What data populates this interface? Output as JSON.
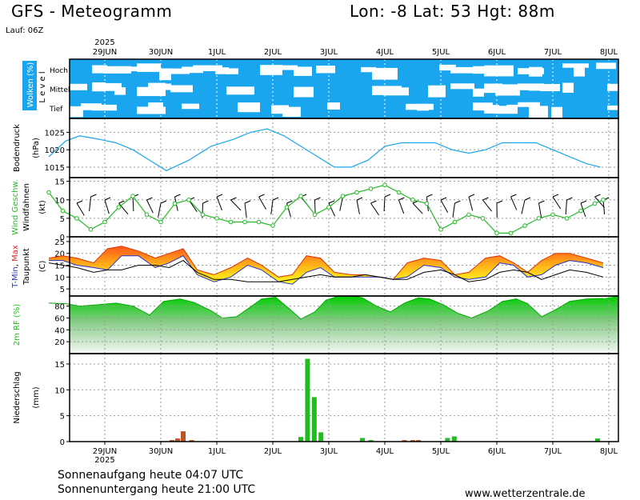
{
  "header": {
    "title": "GFS - Meteogramm",
    "location": "Lon: -8 Lat: 53 Hgt: 88m",
    "run": "Lauf: 06Z"
  },
  "footer": {
    "sunrise": "Sonnenaufgang heute 04:07 UTC",
    "sunset": "Sonnenuntergang heute 21:00 UTC",
    "site": "www.wetterzentrale.de"
  },
  "colors": {
    "cloud": "#1aa6ee",
    "pressure": "#1aa6ee",
    "wind_speed": "#22bb22",
    "t_min": "#2233cc",
    "t_max": "#ee2222",
    "dewpoint": "#000000",
    "rh": "#11cc11",
    "rain": "#22bb22",
    "snow": "#bb5522"
  },
  "chart_data": [
    {
      "type": "heatmap",
      "id": "clouds",
      "ylabel": "Wolken (%)",
      "ylabel_rows": [
        "L e v e l"
      ],
      "levels": [
        "Hoch",
        "Mittel",
        "Tief"
      ],
      "dates": [
        "29JUN",
        "30JUN",
        "1JUL",
        "2JUL",
        "3JUL",
        "4JUL",
        "5JUL",
        "6JUL",
        "7JUL",
        "8JUL"
      ],
      "year": "2025"
    },
    {
      "type": "line",
      "id": "pressure",
      "ylabel": "Bodendruck",
      "unit": "(hPa)",
      "yticks": [
        1015,
        1020,
        1025
      ],
      "ylim": [
        1012,
        1029
      ],
      "x_day": [
        0,
        0.3,
        0.55,
        0.9,
        1.2,
        1.5,
        1.8,
        2.1,
        2.5,
        2.9,
        3.3,
        3.6,
        3.9,
        4.2,
        4.5,
        4.8,
        5.1,
        5.4,
        5.7,
        6.0,
        6.3,
        6.6,
        6.9,
        7.2,
        7.5,
        7.8,
        8.1,
        8.4,
        8.7,
        9.0,
        9.3,
        9.6,
        9.85
      ],
      "values": [
        1018,
        1022.5,
        1024,
        1023,
        1022,
        1020,
        1017,
        1014,
        1017,
        1021,
        1023,
        1025,
        1026,
        1024,
        1021,
        1018,
        1015,
        1015,
        1017,
        1021,
        1022,
        1022,
        1022,
        1020,
        1019,
        1020,
        1022,
        1022,
        1022,
        1020,
        1018,
        1016,
        1015
      ]
    },
    {
      "type": "line",
      "id": "wind",
      "ylabel": "Wind Geschw.",
      "ylabel2": "Windfahnen",
      "unit": "(kt)",
      "yticks": [
        0,
        5,
        10,
        15
      ],
      "ylim": [
        0,
        16
      ],
      "x_day": [
        0,
        0.25,
        0.5,
        0.75,
        1.0,
        1.25,
        1.5,
        1.75,
        2.0,
        2.25,
        2.5,
        2.75,
        3.0,
        3.25,
        3.5,
        3.75,
        4.0,
        4.25,
        4.5,
        4.75,
        5.0,
        5.25,
        5.5,
        5.75,
        6.0,
        6.25,
        6.5,
        6.75,
        7.0,
        7.25,
        7.5,
        7.75,
        8.0,
        8.25,
        8.5,
        8.75,
        9.0,
        9.25,
        9.5,
        9.75,
        9.9
      ],
      "values": [
        12,
        7,
        5,
        2,
        4,
        8,
        11,
        6,
        4,
        9,
        10,
        6,
        5,
        4,
        4,
        4,
        3,
        8,
        11,
        6,
        8,
        11,
        12,
        13,
        14,
        12,
        10,
        9,
        2,
        4,
        6,
        5,
        1,
        1,
        3,
        5,
        6,
        5,
        7,
        9,
        10
      ]
    },
    {
      "type": "area",
      "id": "temperature",
      "ylabel_parts": [
        "T-Min",
        ", ",
        "Max"
      ],
      "ylabel2": "Taupunkt",
      "unit": "(C)",
      "yticks": [
        5,
        10,
        15,
        20,
        25
      ],
      "ylim": [
        2,
        27
      ],
      "x_day": [
        0,
        0.25,
        0.5,
        0.8,
        1.05,
        1.3,
        1.6,
        1.9,
        2.15,
        2.4,
        2.65,
        2.95,
        3.25,
        3.55,
        3.8,
        4.1,
        4.35,
        4.6,
        4.85,
        5.1,
        5.4,
        5.65,
        5.9,
        6.15,
        6.4,
        6.7,
        7.0,
        7.25,
        7.5,
        7.8,
        8.05,
        8.3,
        8.55,
        8.8,
        9.05,
        9.3,
        9.6,
        9.9
      ],
      "t_max": [
        18,
        19,
        18,
        16,
        22,
        23,
        21,
        18,
        20,
        22,
        13,
        11,
        14,
        18,
        15,
        10,
        11,
        19,
        18,
        12,
        11,
        11,
        10,
        9,
        16,
        18,
        17,
        11,
        12,
        18,
        19,
        16,
        12,
        17,
        20,
        20,
        18,
        16
      ],
      "t_min": [
        17,
        17,
        15,
        14,
        13,
        19,
        19,
        14,
        16,
        19,
        11,
        8,
        10,
        15,
        13,
        8,
        7,
        12,
        14,
        10,
        10,
        10,
        10,
        9,
        10,
        15,
        14,
        10,
        9,
        10,
        16,
        15,
        10,
        11,
        15,
        17,
        16,
        14
      ],
      "dewpoint": [
        16,
        15,
        14,
        12,
        13,
        13,
        15,
        15,
        14,
        17,
        12,
        9,
        9,
        8,
        8,
        8,
        9,
        10,
        11,
        10,
        10,
        11,
        10,
        9,
        9,
        12,
        13,
        11,
        8,
        9,
        12,
        13,
        12,
        9,
        11,
        13,
        12,
        10
      ]
    },
    {
      "type": "area",
      "id": "humidity",
      "ylabel": "2m RF (%)",
      "yticks": [
        20,
        40,
        60,
        80
      ],
      "ylim": [
        0,
        97
      ],
      "x_day": [
        0,
        0.3,
        0.55,
        0.85,
        1.2,
        1.5,
        1.8,
        2.05,
        2.35,
        2.6,
        2.9,
        3.1,
        3.35,
        3.55,
        3.8,
        4.05,
        4.3,
        4.5,
        4.75,
        4.95,
        5.15,
        5.4,
        5.6,
        5.85,
        6.1,
        6.35,
        6.6,
        6.8,
        7.05,
        7.3,
        7.55,
        7.85,
        8.1,
        8.35,
        8.55,
        8.8,
        9.05,
        9.3,
        9.6,
        9.9
      ],
      "values": [
        85,
        84,
        80,
        82,
        85,
        80,
        65,
        88,
        92,
        86,
        72,
        60,
        62,
        75,
        92,
        95,
        75,
        58,
        70,
        90,
        96,
        97,
        94,
        80,
        70,
        85,
        94,
        92,
        82,
        68,
        60,
        72,
        88,
        92,
        84,
        62,
        74,
        88,
        92,
        93
      ]
    },
    {
      "type": "bar",
      "id": "precipitation",
      "ylabel": "Niederschlag",
      "unit": "(mm)",
      "yticks": [
        0,
        5,
        10,
        15
      ],
      "ylim": [
        0,
        17
      ],
      "xticks": [
        "29JUN",
        "30JUN",
        "1JUL",
        "2JUL",
        "3JUL",
        "4JUL",
        "5JUL",
        "6JUL",
        "7JUL",
        "8JUL"
      ],
      "year": "2025",
      "bars": [
        {
          "day": 2.2,
          "value": 0.3,
          "kind": "snow"
        },
        {
          "day": 2.3,
          "value": 0.6,
          "kind": "snow"
        },
        {
          "day": 2.4,
          "value": 2.0,
          "kind": "snow"
        },
        {
          "day": 2.55,
          "value": 0.3,
          "kind": "snow"
        },
        {
          "day": 4.5,
          "value": 0.9,
          "kind": "rain"
        },
        {
          "day": 4.62,
          "value": 16.0,
          "kind": "rain"
        },
        {
          "day": 4.74,
          "value": 8.6,
          "kind": "rain"
        },
        {
          "day": 4.86,
          "value": 1.8,
          "kind": "rain"
        },
        {
          "day": 5.6,
          "value": 0.7,
          "kind": "rain"
        },
        {
          "day": 5.75,
          "value": 0.3,
          "kind": "rain"
        },
        {
          "day": 6.35,
          "value": 0.3,
          "kind": "snow"
        },
        {
          "day": 6.5,
          "value": 0.3,
          "kind": "snow"
        },
        {
          "day": 6.6,
          "value": 0.3,
          "kind": "snow"
        },
        {
          "day": 7.12,
          "value": 0.7,
          "kind": "rain"
        },
        {
          "day": 7.24,
          "value": 1.0,
          "kind": "rain"
        },
        {
          "day": 9.8,
          "value": 0.6,
          "kind": "rain"
        }
      ]
    }
  ]
}
